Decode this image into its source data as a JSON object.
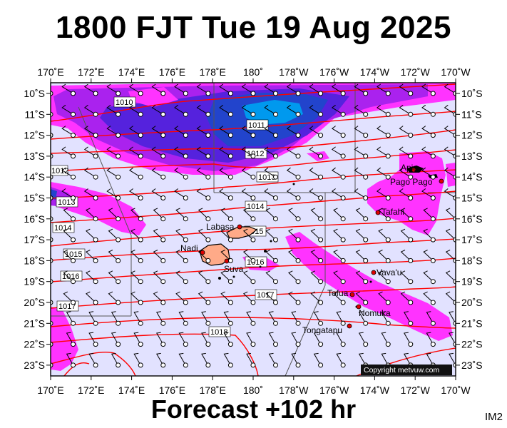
{
  "title": "1800 FJT Tue 19 Aug 2025",
  "footer": "Forecast +102 hr",
  "image_code": "IM2",
  "copyright": "Copyright metvuw.com",
  "colors": {
    "ocean": "#e2e2ff",
    "rain_light": "#ff33ff",
    "rain_mid": "#aa22ee",
    "rain_heavy": "#5522dd",
    "rain_very_heavy": "#2244cc",
    "rain_extreme": "#0099ee",
    "isobar": "#ff0000",
    "land": "#000000"
  },
  "axes": {
    "lon_labels": [
      "170˚E",
      "172˚E",
      "174˚E",
      "176˚E",
      "178˚E",
      "180˚",
      "178˚W",
      "176˚W",
      "174˚W",
      "172˚W",
      "170˚W"
    ],
    "lat_labels": [
      "10˚S",
      "11˚S",
      "12˚S",
      "13˚S",
      "14˚S",
      "15˚S",
      "16˚S",
      "17˚S",
      "18˚S",
      "19˚S",
      "20˚S",
      "21˚S",
      "22˚S",
      "23˚S"
    ]
  },
  "isobar_labels": [
    "1010",
    "1011",
    "1012",
    "1012",
    "1013",
    "1013",
    "1014",
    "1014",
    "1015",
    "1015",
    "1016",
    "1016",
    "1017",
    "1017",
    "1018"
  ],
  "places": [
    "Apia",
    "Pago Pago",
    "Tafahi",
    "Labasa",
    "Nadi",
    "Suva",
    "Vava'u",
    "Tofua",
    "Nomuka",
    "Tongatapu"
  ]
}
